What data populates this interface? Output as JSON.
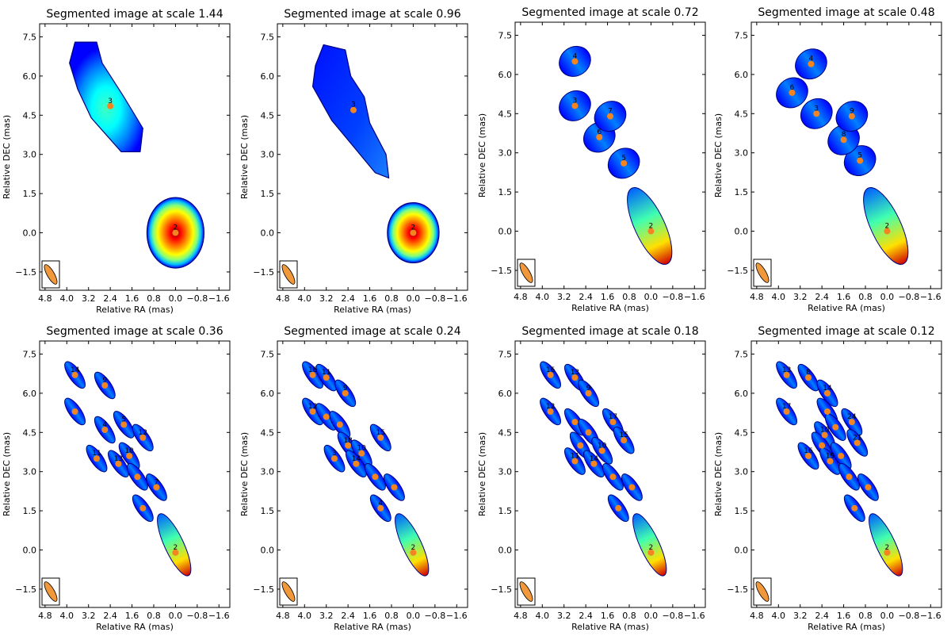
{
  "figure": {
    "kind": "grid of segmented radio images",
    "rows": 2,
    "cols": 4
  },
  "colors": {
    "marker": "#f28522",
    "frame": "#000000",
    "beam_fill": "#f0983a",
    "colormap": [
      "#00007f",
      "#0000ff",
      "#007fff",
      "#00ffff",
      "#7fff7f",
      "#ffff00",
      "#ff7f00",
      "#ff0000",
      "#7f0000"
    ]
  },
  "chart_data": [
    {
      "type": "segmented-image",
      "title": "Segmented image at scale 1.44",
      "scale": 1.44,
      "xlabel": "Relative RA (mas)",
      "ylabel": "Relative DEC (mas)",
      "xlim": [
        5.0,
        -2.0
      ],
      "ylim": [
        -2.2,
        8.0
      ],
      "xticks": [
        "4.8",
        "4.0",
        "3.2",
        "2.4",
        "1.6",
        "0.8",
        "0.0",
        "−0.8",
        "−1.6"
      ],
      "yticks": [
        "−1.5",
        "0.0",
        "1.5",
        "3.0",
        "4.5",
        "6.0",
        "7.5"
      ],
      "components": [
        {
          "id": "2",
          "ra": 0.0,
          "dec": 0.0
        },
        {
          "id": "3",
          "ra": 2.4,
          "dec": 4.85
        }
      ]
    },
    {
      "type": "segmented-image",
      "title": "Segmented image at scale 0.96",
      "scale": 0.96,
      "xlabel": "Relative RA (mas)",
      "ylabel": "Relative DEC (mas)",
      "xlim": [
        5.0,
        -2.0
      ],
      "ylim": [
        -2.2,
        8.0
      ],
      "xticks": [
        "4.8",
        "4.0",
        "3.2",
        "2.4",
        "1.6",
        "0.8",
        "0.0",
        "−0.8",
        "−1.6"
      ],
      "yticks": [
        "−1.5",
        "0.0",
        "1.5",
        "3.0",
        "4.5",
        "6.0",
        "7.5"
      ],
      "components": [
        {
          "id": "2",
          "ra": 0.0,
          "dec": 0.0
        },
        {
          "id": "3",
          "ra": 2.2,
          "dec": 4.7
        }
      ]
    },
    {
      "type": "segmented-image",
      "title": "Segmented image at scale 0.72",
      "scale": 0.72,
      "xlabel": "Relative RA (mas)",
      "ylabel": "Relative DEC (mas)",
      "xlim": [
        5.0,
        -2.0
      ],
      "ylim": [
        -2.2,
        8.0
      ],
      "xticks": [
        "4.8",
        "4.0",
        "3.2",
        "2.4",
        "1.6",
        "0.8",
        "0.0",
        "−0.8",
        "−1.6"
      ],
      "yticks": [
        "−1.5",
        "0.0",
        "1.5",
        "3.0",
        "4.5",
        "6.0",
        "7.5"
      ],
      "components": [
        {
          "id": "2",
          "ra": 0.0,
          "dec": 0.0
        },
        {
          "id": "3",
          "ra": 2.8,
          "dec": 4.8
        },
        {
          "id": "4",
          "ra": 2.8,
          "dec": 6.5
        },
        {
          "id": "5",
          "ra": 1.0,
          "dec": 2.6
        },
        {
          "id": "6",
          "ra": 1.9,
          "dec": 3.6
        },
        {
          "id": "7",
          "ra": 1.5,
          "dec": 4.4
        }
      ]
    },
    {
      "type": "segmented-image",
      "title": "Segmented image at scale 0.48",
      "scale": 0.48,
      "xlabel": "Relative RA (mas)",
      "ylabel": "Relative DEC (mas)",
      "xlim": [
        5.0,
        -2.0
      ],
      "ylim": [
        -2.2,
        8.0
      ],
      "xticks": [
        "4.8",
        "4.0",
        "3.2",
        "2.4",
        "1.6",
        "0.8",
        "0.0",
        "−0.8",
        "−1.6"
      ],
      "yticks": [
        "−1.5",
        "0.0",
        "1.5",
        "3.0",
        "4.5",
        "6.0",
        "7.5"
      ],
      "components": [
        {
          "id": "2",
          "ra": 0.0,
          "dec": 0.0
        },
        {
          "id": "3",
          "ra": 2.6,
          "dec": 4.5
        },
        {
          "id": "4",
          "ra": 2.8,
          "dec": 6.4
        },
        {
          "id": "5",
          "ra": 1.0,
          "dec": 2.7
        },
        {
          "id": "6",
          "ra": 3.5,
          "dec": 5.3
        },
        {
          "id": "8",
          "ra": 1.6,
          "dec": 3.5
        },
        {
          "id": "9",
          "ra": 1.3,
          "dec": 4.4
        }
      ]
    },
    {
      "type": "segmented-image",
      "title": "Segmented image at scale 0.36",
      "scale": 0.36,
      "xlabel": "Relative RA (mas)",
      "ylabel": "Relative DEC (mas)",
      "xlim": [
        5.0,
        -2.0
      ],
      "ylim": [
        -2.2,
        8.0
      ],
      "xticks": [
        "4.8",
        "4.0",
        "3.2",
        "2.4",
        "1.6",
        "0.8",
        "0.0",
        "−0.8",
        "−1.6"
      ],
      "yticks": [
        "−1.5",
        "0.0",
        "1.5",
        "3.0",
        "4.5",
        "6.0",
        "7.5"
      ],
      "components": [
        {
          "id": "14",
          "ra": 3.7,
          "dec": 6.7
        },
        {
          "id": "9",
          "ra": 2.6,
          "dec": 6.3
        },
        {
          "id": "",
          "ra": 3.7,
          "dec": 5.3
        },
        {
          "id": "5",
          "ra": 1.9,
          "dec": 4.8
        },
        {
          "id": "4",
          "ra": 2.6,
          "dec": 4.6
        },
        {
          "id": "12",
          "ra": 1.2,
          "dec": 4.3
        },
        {
          "id": "11",
          "ra": 2.9,
          "dec": 3.5
        },
        {
          "id": "10",
          "ra": 1.7,
          "dec": 3.6
        },
        {
          "id": "13",
          "ra": 2.1,
          "dec": 3.3
        },
        {
          "id": "",
          "ra": 1.4,
          "dec": 2.8
        },
        {
          "id": "7",
          "ra": 0.7,
          "dec": 2.4
        },
        {
          "id": "",
          "ra": 1.2,
          "dec": 1.6
        },
        {
          "id": "2",
          "ra": 0.0,
          "dec": -0.1
        }
      ]
    },
    {
      "type": "segmented-image",
      "title": "Segmented image at scale 0.24",
      "scale": 0.24,
      "xlabel": "Relative RA (mas)",
      "ylabel": "Relative DEC (mas)",
      "xlim": [
        5.0,
        -2.0
      ],
      "ylim": [
        -2.2,
        8.0
      ],
      "xticks": [
        "4.8",
        "4.0",
        "3.2",
        "2.4",
        "1.6",
        "0.8",
        "0.0",
        "−0.8",
        "−1.6"
      ],
      "yticks": [
        "−1.5",
        "0.0",
        "1.5",
        "3.0",
        "4.5",
        "6.0",
        "7.5"
      ],
      "components": [
        {
          "id": "16",
          "ra": 3.7,
          "dec": 6.7
        },
        {
          "id": "11",
          "ra": 3.2,
          "dec": 6.6
        },
        {
          "id": "9",
          "ra": 2.5,
          "dec": 6.0
        },
        {
          "id": "12",
          "ra": 3.7,
          "dec": 5.3
        },
        {
          "id": "",
          "ra": 3.2,
          "dec": 5.1
        },
        {
          "id": "",
          "ra": 2.7,
          "dec": 4.8
        },
        {
          "id": "15",
          "ra": 1.2,
          "dec": 4.3
        },
        {
          "id": "18",
          "ra": 2.4,
          "dec": 4.0
        },
        {
          "id": "10",
          "ra": 1.9,
          "dec": 3.7
        },
        {
          "id": "3",
          "ra": 2.9,
          "dec": 3.5
        },
        {
          "id": "14",
          "ra": 2.1,
          "dec": 3.3
        },
        {
          "id": "",
          "ra": 1.4,
          "dec": 2.8
        },
        {
          "id": "",
          "ra": 0.7,
          "dec": 2.4
        },
        {
          "id": "4",
          "ra": 1.2,
          "dec": 1.6
        },
        {
          "id": "2",
          "ra": 0.0,
          "dec": -0.1
        }
      ]
    },
    {
      "type": "segmented-image",
      "title": "Segmented image at scale 0.18",
      "scale": 0.18,
      "xlabel": "Relative RA (mas)",
      "ylabel": "Relative DEC (mas)",
      "xlim": [
        5.0,
        -2.0
      ],
      "ylim": [
        -2.2,
        8.0
      ],
      "xticks": [
        "4.8",
        "4.0",
        "3.2",
        "2.4",
        "1.6",
        "0.8",
        "0.0",
        "−0.8",
        "−1.6"
      ],
      "yticks": [
        "−1.5",
        "0.0",
        "1.5",
        "3.0",
        "4.5",
        "6.0",
        "7.5"
      ],
      "components": [
        {
          "id": "16",
          "ra": 3.7,
          "dec": 6.7
        },
        {
          "id": "13",
          "ra": 2.8,
          "dec": 6.6
        },
        {
          "id": "9",
          "ra": 2.3,
          "dec": 6.0
        },
        {
          "id": "12",
          "ra": 3.7,
          "dec": 5.3
        },
        {
          "id": "",
          "ra": 2.8,
          "dec": 4.9
        },
        {
          "id": "",
          "ra": 2.3,
          "dec": 4.5
        },
        {
          "id": "17",
          "ra": 1.4,
          "dec": 4.9
        },
        {
          "id": "15",
          "ra": 1.0,
          "dec": 4.2
        },
        {
          "id": "",
          "ra": 2.6,
          "dec": 4.0
        },
        {
          "id": "10",
          "ra": 1.8,
          "dec": 3.8
        },
        {
          "id": "11",
          "ra": 2.8,
          "dec": 3.4
        },
        {
          "id": "14",
          "ra": 2.1,
          "dec": 3.3
        },
        {
          "id": "",
          "ra": 1.4,
          "dec": 2.8
        },
        {
          "id": "",
          "ra": 0.7,
          "dec": 2.4
        },
        {
          "id": "",
          "ra": 1.2,
          "dec": 1.6
        },
        {
          "id": "2",
          "ra": 0.0,
          "dec": -0.1
        }
      ]
    },
    {
      "type": "segmented-image",
      "title": "Segmented image at scale 0.12",
      "scale": 0.12,
      "xlabel": "Relative RA (mas)",
      "ylabel": "Relative DEC (mas)",
      "xlim": [
        5.0,
        -2.0
      ],
      "ylim": [
        -2.2,
        8.0
      ],
      "xticks": [
        "4.8",
        "4.0",
        "3.2",
        "2.4",
        "1.6",
        "0.8",
        "0.0",
        "−0.8",
        "−1.6"
      ],
      "yticks": [
        "−1.5",
        "0.0",
        "1.5",
        "3.0",
        "4.5",
        "6.0",
        "7.5"
      ],
      "components": [
        {
          "id": "13",
          "ra": 3.7,
          "dec": 6.7
        },
        {
          "id": "8",
          "ra": 2.9,
          "dec": 6.6
        },
        {
          "id": "14",
          "ra": 2.2,
          "dec": 6.0
        },
        {
          "id": "17",
          "ra": 3.7,
          "dec": 5.3
        },
        {
          "id": "",
          "ra": 2.2,
          "dec": 5.3
        },
        {
          "id": "24",
          "ra": 1.3,
          "dec": 4.9
        },
        {
          "id": "10",
          "ra": 2.3,
          "dec": 4.4
        },
        {
          "id": "",
          "ra": 1.9,
          "dec": 4.7
        },
        {
          "id": "21",
          "ra": 1.1,
          "dec": 4.1
        },
        {
          "id": "",
          "ra": 2.4,
          "dec": 4.0
        },
        {
          "id": "16",
          "ra": 2.9,
          "dec": 3.6
        },
        {
          "id": "19",
          "ra": 2.1,
          "dec": 3.4
        },
        {
          "id": "",
          "ra": 1.7,
          "dec": 3.6
        },
        {
          "id": "",
          "ra": 1.4,
          "dec": 2.8
        },
        {
          "id": "",
          "ra": 0.7,
          "dec": 2.4
        },
        {
          "id": "",
          "ra": 1.2,
          "dec": 1.6
        },
        {
          "id": "2",
          "ra": 0.0,
          "dec": -0.1
        }
      ]
    }
  ]
}
